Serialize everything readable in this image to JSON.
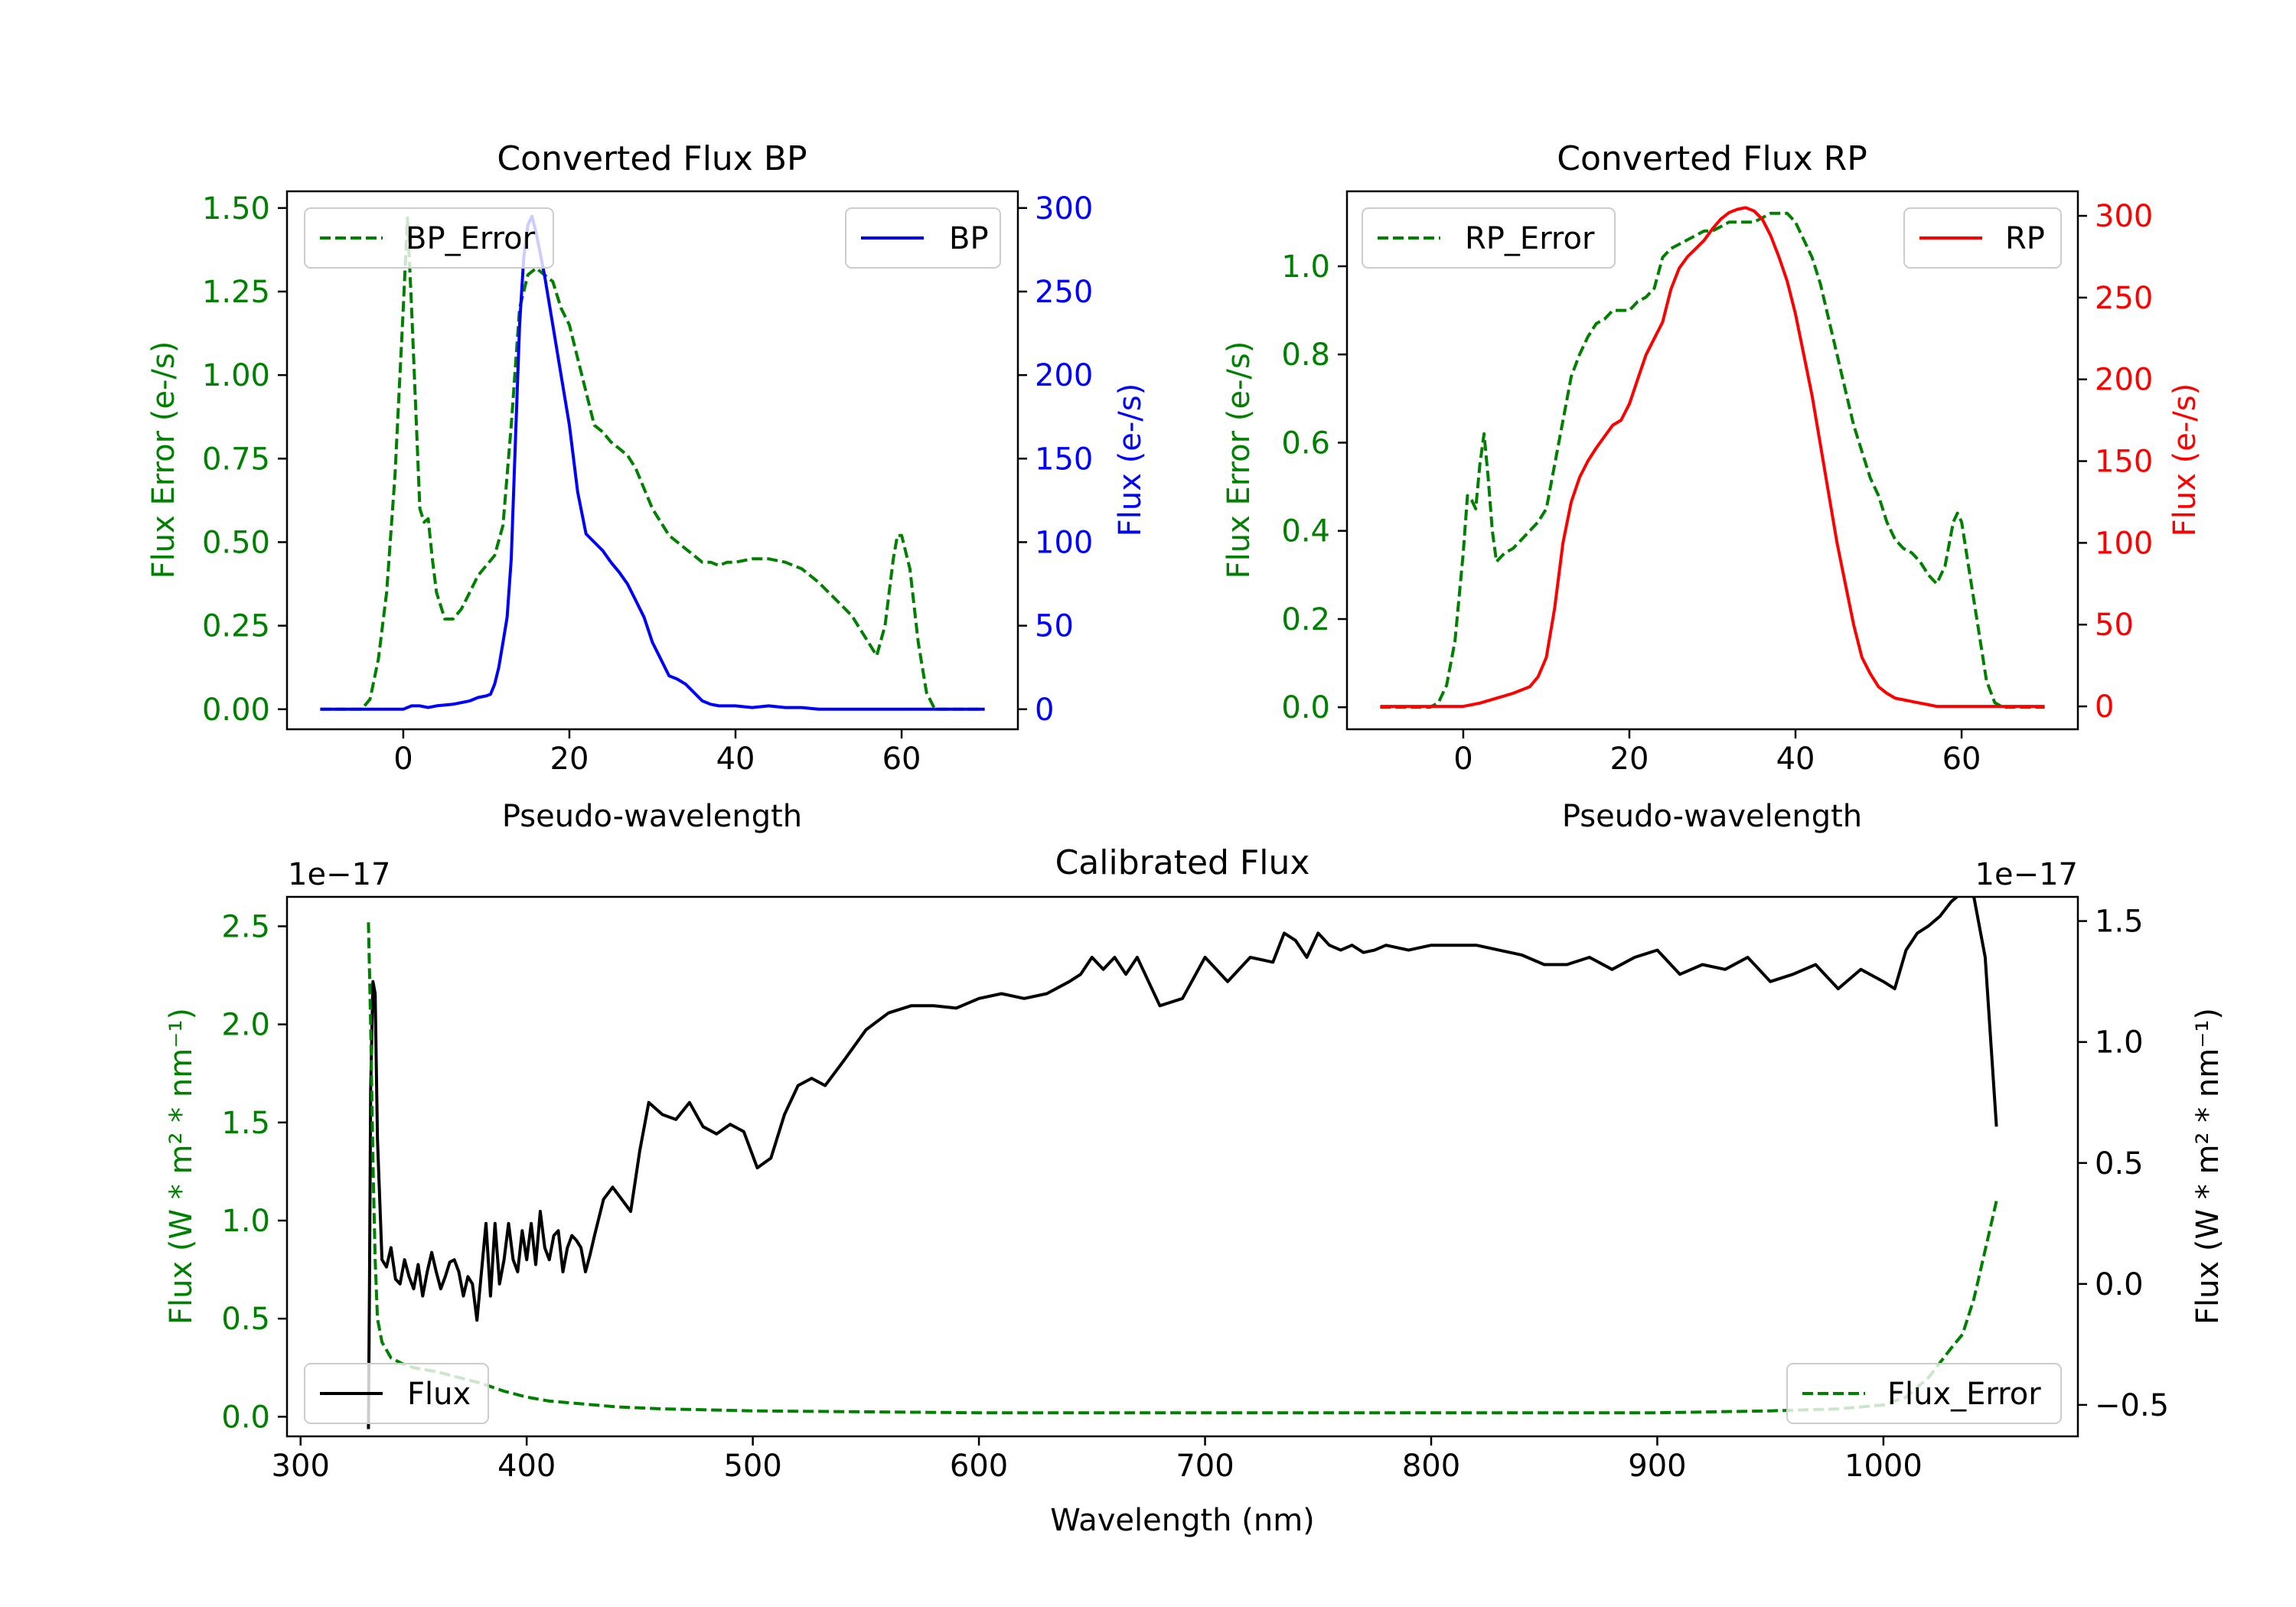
{
  "chart_data": [
    {
      "type": "line",
      "title": "Converted Flux BP",
      "xlabel": "Pseudo-wavelength",
      "ylabel_left": "Flux Error (e-/s)",
      "ylabel_right": "Flux (e-/s)",
      "xlim": [
        -14,
        74
      ],
      "ylim_left": [
        -0.06,
        1.55
      ],
      "ylim_right": [
        -12,
        310
      ],
      "xticks": [
        0,
        20,
        40,
        60
      ],
      "yticks_left": [
        0.0,
        0.25,
        0.5,
        0.75,
        1.0,
        1.25,
        1.5
      ],
      "yticks_left_labels": [
        "0.00",
        "0.25",
        "0.50",
        "0.75",
        "1.00",
        "1.25",
        "1.50"
      ],
      "yticks_right": [
        0,
        50,
        100,
        150,
        200,
        250,
        300
      ],
      "colors": {
        "left": "#008000",
        "right": "#0000ff"
      },
      "legend_left": {
        "label": "BP_Error",
        "position": "upper-left"
      },
      "legend_right": {
        "label": "BP",
        "position": "upper-right"
      },
      "series": [
        {
          "name": "BP_Error",
          "axis": "left",
          "style": "dashed",
          "color": "#008000",
          "x": [
            -10,
            -5,
            -4,
            -3,
            -2,
            -1,
            0,
            0.5,
            1,
            2,
            2.5,
            3,
            3.5,
            4,
            5,
            6,
            7,
            8,
            9,
            10,
            11,
            12,
            13,
            14,
            15,
            16,
            17,
            18,
            19,
            20,
            21,
            22,
            23,
            24,
            25,
            26,
            27,
            28,
            29,
            30,
            31,
            32,
            33,
            34,
            35,
            36,
            37,
            38,
            39,
            40,
            42,
            44,
            46,
            48,
            50,
            52,
            54,
            55,
            56,
            57,
            58,
            59,
            59.5,
            60,
            61,
            62,
            63,
            64,
            65,
            70
          ],
          "y": [
            0.0,
            0.0,
            0.03,
            0.15,
            0.35,
            0.7,
            1.2,
            1.47,
            1.2,
            0.6,
            0.56,
            0.57,
            0.45,
            0.35,
            0.27,
            0.27,
            0.3,
            0.35,
            0.4,
            0.43,
            0.46,
            0.55,
            0.85,
            1.2,
            1.3,
            1.32,
            1.3,
            1.28,
            1.2,
            1.15,
            1.05,
            0.95,
            0.85,
            0.83,
            0.8,
            0.78,
            0.76,
            0.72,
            0.66,
            0.6,
            0.56,
            0.52,
            0.5,
            0.48,
            0.46,
            0.44,
            0.44,
            0.43,
            0.44,
            0.44,
            0.45,
            0.45,
            0.44,
            0.42,
            0.38,
            0.33,
            0.28,
            0.24,
            0.2,
            0.16,
            0.25,
            0.45,
            0.52,
            0.52,
            0.42,
            0.2,
            0.05,
            0.0,
            0.0,
            0.0
          ]
        },
        {
          "name": "BP",
          "axis": "right",
          "style": "solid",
          "color": "#0000ff",
          "x": [
            -10,
            -5,
            0,
            1,
            2,
            3,
            4,
            6,
            8,
            9,
            10,
            10.5,
            11,
            11.5,
            12,
            12.5,
            13,
            13.5,
            14,
            14.5,
            15,
            15.5,
            16,
            17,
            18,
            19,
            20,
            21,
            22,
            23,
            24,
            25,
            26,
            27,
            28,
            29,
            30,
            31,
            32,
            33,
            34,
            35,
            36,
            37,
            38,
            40,
            42,
            44,
            46,
            48,
            50,
            55,
            60,
            65,
            70
          ],
          "y": [
            0,
            0,
            0,
            2,
            2,
            1,
            2,
            3,
            5,
            7,
            8,
            9,
            15,
            25,
            40,
            55,
            90,
            160,
            230,
            270,
            290,
            295,
            285,
            260,
            230,
            200,
            170,
            130,
            105,
            100,
            95,
            88,
            82,
            75,
            65,
            55,
            40,
            30,
            20,
            18,
            15,
            10,
            5,
            3,
            2,
            2,
            1,
            2,
            1,
            1,
            0,
            0,
            0,
            0,
            0
          ]
        }
      ]
    },
    {
      "type": "line",
      "title": "Converted Flux RP",
      "xlabel": "Pseudo-wavelength",
      "ylabel_left": "Flux Error (e-/s)",
      "ylabel_right": "Flux (e-/s)",
      "xlim": [
        -14,
        74
      ],
      "ylim_left": [
        -0.05,
        1.17
      ],
      "ylim_right": [
        -14,
        315
      ],
      "xticks": [
        0,
        20,
        40,
        60
      ],
      "yticks_left": [
        0.0,
        0.2,
        0.4,
        0.6,
        0.8,
        1.0
      ],
      "yticks_left_labels": [
        "0.0",
        "0.2",
        "0.4",
        "0.6",
        "0.8",
        "1.0"
      ],
      "yticks_right": [
        0,
        50,
        100,
        150,
        200,
        250,
        300
      ],
      "colors": {
        "left": "#008000",
        "right": "#ff0000"
      },
      "legend_left": {
        "label": "RP_Error",
        "position": "upper-left"
      },
      "legend_right": {
        "label": "RP",
        "position": "upper-right"
      },
      "series": [
        {
          "name": "RP_Error",
          "axis": "left",
          "style": "dashed",
          "color": "#008000",
          "x": [
            -10,
            -5,
            -4,
            -3,
            -2,
            -1,
            0,
            0.5,
            1,
            1.5,
            2,
            2.5,
            3,
            3.5,
            4,
            5,
            6,
            7,
            8,
            9,
            10,
            11,
            12,
            13,
            14,
            15,
            16,
            17,
            18,
            19,
            20,
            21,
            22,
            23,
            24,
            25,
            26,
            27,
            28,
            29,
            30,
            31,
            32,
            33,
            34,
            35,
            36,
            37,
            38,
            39,
            40,
            41,
            42,
            43,
            44,
            45,
            46,
            47,
            48,
            49,
            50,
            51,
            52,
            53,
            54,
            55,
            56,
            57,
            58,
            59,
            59.5,
            60,
            61,
            62,
            63,
            64,
            65,
            70
          ],
          "y": [
            0.0,
            0.0,
            0.0,
            0.01,
            0.05,
            0.15,
            0.35,
            0.48,
            0.47,
            0.45,
            0.55,
            0.62,
            0.52,
            0.4,
            0.33,
            0.35,
            0.36,
            0.38,
            0.4,
            0.42,
            0.45,
            0.55,
            0.65,
            0.75,
            0.8,
            0.84,
            0.87,
            0.88,
            0.9,
            0.9,
            0.9,
            0.92,
            0.93,
            0.95,
            1.02,
            1.04,
            1.05,
            1.06,
            1.07,
            1.08,
            1.08,
            1.09,
            1.1,
            1.1,
            1.1,
            1.1,
            1.11,
            1.12,
            1.12,
            1.12,
            1.1,
            1.06,
            1.02,
            0.96,
            0.88,
            0.8,
            0.72,
            0.64,
            0.58,
            0.52,
            0.48,
            0.42,
            0.38,
            0.36,
            0.35,
            0.33,
            0.3,
            0.28,
            0.32,
            0.42,
            0.44,
            0.42,
            0.3,
            0.18,
            0.06,
            0.01,
            0.0,
            0.0
          ]
        },
        {
          "name": "RP",
          "axis": "right",
          "style": "solid",
          "color": "#ff0000",
          "x": [
            -10,
            -5,
            0,
            2,
            4,
            6,
            8,
            9,
            10,
            11,
            12,
            13,
            14,
            15,
            16,
            17,
            18,
            19,
            20,
            21,
            22,
            23,
            24,
            25,
            26,
            27,
            28,
            29,
            30,
            31,
            32,
            33,
            34,
            35,
            36,
            37,
            38,
            39,
            40,
            41,
            42,
            43,
            44,
            45,
            46,
            47,
            48,
            49,
            50,
            51,
            52,
            53,
            54,
            55,
            56,
            57,
            58,
            60,
            65,
            70
          ],
          "y": [
            0,
            0,
            0,
            2,
            5,
            8,
            12,
            18,
            30,
            60,
            100,
            125,
            140,
            150,
            158,
            165,
            172,
            175,
            185,
            200,
            215,
            225,
            235,
            255,
            268,
            275,
            280,
            285,
            292,
            298,
            302,
            304,
            305,
            303,
            298,
            288,
            275,
            260,
            240,
            215,
            190,
            160,
            130,
            100,
            75,
            50,
            30,
            20,
            12,
            8,
            5,
            4,
            3,
            2,
            1,
            0,
            0,
            0,
            0,
            0
          ]
        }
      ]
    },
    {
      "type": "line",
      "title": "Calibrated Flux",
      "xlabel": "Wavelength (nm)",
      "ylabel_left": "Flux (W * m² * nm⁻¹)",
      "ylabel_right": "Flux (W * m² * nm⁻¹)",
      "offset_left": "1e−17",
      "offset_right": "1e−17",
      "xlim": [
        294,
        1086
      ],
      "ylim_left": [
        -0.1,
        2.65
      ],
      "ylim_right": [
        -0.63,
        1.6
      ],
      "xticks": [
        300,
        400,
        500,
        600,
        700,
        800,
        900,
        1000
      ],
      "yticks_left": [
        0.0,
        0.5,
        1.0,
        1.5,
        2.0,
        2.5
      ],
      "yticks_left_labels": [
        "0.0",
        "0.5",
        "1.0",
        "1.5",
        "2.0",
        "2.5"
      ],
      "yticks_right": [
        -0.5,
        0.0,
        0.5,
        1.0,
        1.5
      ],
      "yticks_right_labels": [
        "−0.5",
        "0.0",
        "0.5",
        "1.0",
        "1.5"
      ],
      "colors": {
        "left": "#008000",
        "right": "#000000"
      },
      "legend_left": {
        "label": "Flux",
        "position": "lower-left"
      },
      "legend_right": {
        "label": "Flux_Error",
        "position": "lower-right"
      },
      "series": [
        {
          "name": "Flux",
          "axis": "right",
          "style": "solid",
          "color": "#000000",
          "x": [
            330,
            330.5,
            331,
            332,
            333,
            334,
            336,
            338,
            340,
            342,
            344,
            346,
            348,
            350,
            352,
            354,
            356,
            358,
            360,
            362,
            364,
            366,
            368,
            370,
            372,
            374,
            376,
            378,
            380,
            382,
            384,
            386,
            388,
            390,
            392,
            394,
            396,
            398,
            400,
            402,
            404,
            406,
            408,
            410,
            412,
            414,
            416,
            418,
            420,
            422,
            424,
            426,
            428,
            430,
            434,
            438,
            442,
            446,
            450,
            454,
            460,
            466,
            472,
            478,
            484,
            490,
            496,
            502,
            508,
            514,
            520,
            526,
            532,
            540,
            550,
            560,
            570,
            580,
            590,
            600,
            610,
            620,
            630,
            640,
            645,
            650,
            655,
            660,
            665,
            670,
            675,
            680,
            690,
            700,
            705,
            710,
            715,
            720,
            730,
            735,
            740,
            745,
            750,
            755,
            760,
            765,
            770,
            775,
            780,
            790,
            800,
            810,
            820,
            830,
            840,
            850,
            860,
            870,
            880,
            890,
            900,
            910,
            920,
            930,
            940,
            950,
            960,
            970,
            980,
            990,
            1000,
            1005,
            1010,
            1015,
            1020,
            1025,
            1030,
            1035,
            1040,
            1045,
            1050
          ],
          "y": [
            -0.6,
            0.0,
            0.8,
            1.25,
            1.2,
            0.6,
            0.1,
            0.07,
            0.15,
            0.02,
            0.0,
            0.1,
            0.03,
            -0.02,
            0.08,
            -0.05,
            0.05,
            0.13,
            0.05,
            -0.02,
            0.03,
            0.09,
            0.1,
            0.05,
            -0.05,
            0.03,
            0.0,
            -0.15,
            0.05,
            0.25,
            -0.05,
            0.25,
            0.0,
            0.1,
            0.25,
            0.1,
            0.05,
            0.22,
            0.1,
            0.25,
            0.08,
            0.3,
            0.15,
            0.1,
            0.2,
            0.22,
            0.05,
            0.15,
            0.2,
            0.18,
            0.15,
            0.05,
            0.12,
            0.2,
            0.35,
            0.4,
            0.35,
            0.3,
            0.55,
            0.75,
            0.7,
            0.68,
            0.75,
            0.65,
            0.62,
            0.66,
            0.63,
            0.48,
            0.52,
            0.7,
            0.82,
            0.85,
            0.82,
            0.92,
            1.05,
            1.12,
            1.15,
            1.15,
            1.14,
            1.18,
            1.2,
            1.18,
            1.2,
            1.25,
            1.28,
            1.35,
            1.3,
            1.35,
            1.28,
            1.35,
            1.25,
            1.15,
            1.18,
            1.35,
            1.3,
            1.25,
            1.3,
            1.35,
            1.33,
            1.45,
            1.42,
            1.35,
            1.45,
            1.4,
            1.38,
            1.4,
            1.37,
            1.38,
            1.4,
            1.38,
            1.4,
            1.4,
            1.4,
            1.38,
            1.36,
            1.32,
            1.32,
            1.35,
            1.3,
            1.35,
            1.38,
            1.28,
            1.32,
            1.3,
            1.35,
            1.25,
            1.28,
            1.32,
            1.22,
            1.3,
            1.25,
            1.22,
            1.38,
            1.45,
            1.48,
            1.52,
            1.58,
            1.62,
            1.6,
            1.35,
            0.65
          ]
        },
        {
          "name": "Flux_Error",
          "axis": "left",
          "style": "dashed",
          "color": "#008000",
          "x": [
            330,
            331,
            332,
            333,
            334,
            336,
            340,
            345,
            350,
            355,
            360,
            370,
            380,
            390,
            400,
            410,
            420,
            430,
            440,
            460,
            500,
            600,
            700,
            800,
            900,
            950,
            980,
            1000,
            1010,
            1020,
            1030,
            1035,
            1040,
            1045,
            1050
          ],
          "y": [
            2.52,
            2.0,
            1.3,
            0.8,
            0.5,
            0.38,
            0.3,
            0.27,
            0.25,
            0.24,
            0.23,
            0.2,
            0.17,
            0.13,
            0.1,
            0.08,
            0.07,
            0.06,
            0.05,
            0.04,
            0.03,
            0.02,
            0.02,
            0.02,
            0.02,
            0.03,
            0.04,
            0.06,
            0.1,
            0.2,
            0.35,
            0.42,
            0.6,
            0.85,
            1.1
          ]
        }
      ]
    }
  ]
}
